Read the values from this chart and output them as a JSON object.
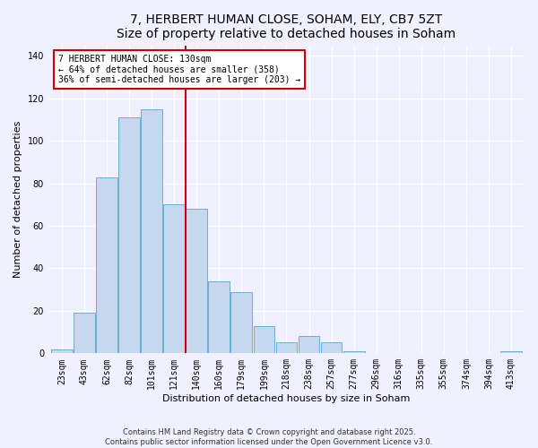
{
  "title": "7, HERBERT HUMAN CLOSE, SOHAM, ELY, CB7 5ZT",
  "subtitle": "Size of property relative to detached houses in Soham",
  "xlabel": "Distribution of detached houses by size in Soham",
  "ylabel": "Number of detached properties",
  "bar_labels": [
    "23sqm",
    "43sqm",
    "62sqm",
    "82sqm",
    "101sqm",
    "121sqm",
    "140sqm",
    "160sqm",
    "179sqm",
    "199sqm",
    "218sqm",
    "238sqm",
    "257sqm",
    "277sqm",
    "296sqm",
    "316sqm",
    "335sqm",
    "355sqm",
    "374sqm",
    "394sqm",
    "413sqm"
  ],
  "bar_values": [
    2,
    19,
    83,
    111,
    115,
    70,
    68,
    34,
    29,
    13,
    5,
    8,
    5,
    1,
    0,
    0,
    0,
    0,
    0,
    0,
    1
  ],
  "bar_color": "#c5d8ee",
  "bar_edge_color": "#6baed6",
  "ylim": [
    0,
    145
  ],
  "yticks": [
    0,
    20,
    40,
    60,
    80,
    100,
    120,
    140
  ],
  "property_line_x": 5.5,
  "annotation_line1": "7 HERBERT HUMAN CLOSE: 130sqm",
  "annotation_line2": "← 64% of detached houses are smaller (358)",
  "annotation_line3": "36% of semi-detached houses are larger (203) →",
  "annotation_box_color": "#ffffff",
  "annotation_box_edge_color": "#cc0000",
  "vline_color": "#cc0000",
  "footer_text": "Contains HM Land Registry data © Crown copyright and database right 2025.\nContains public sector information licensed under the Open Government Licence v3.0.",
  "background_color": "#f0f0ff",
  "grid_color": "#ffffff",
  "title_fontsize": 10,
  "tick_fontsize": 7,
  "ylabel_fontsize": 8,
  "xlabel_fontsize": 8,
  "annotation_fontsize": 7,
  "footer_fontsize": 6
}
